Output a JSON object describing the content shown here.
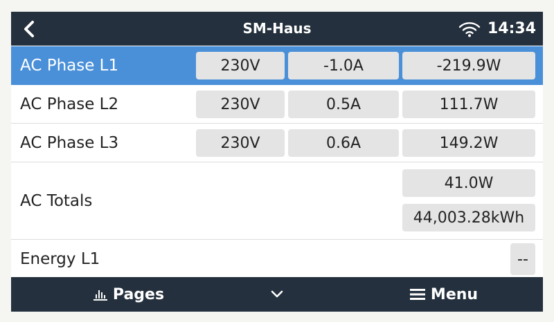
{
  "header": {
    "title": "SM-Haus",
    "time": "14:34",
    "back_icon": "chevron-left-icon",
    "wifi_icon": "wifi-icon"
  },
  "rows": [
    {
      "label": "AC Phase L1",
      "voltage": "230V",
      "current": "-1.0A",
      "power": "-219.9W",
      "selected": true
    },
    {
      "label": "AC Phase L2",
      "voltage": "230V",
      "current": "0.5A",
      "power": "111.7W",
      "selected": false
    },
    {
      "label": "AC Phase L3",
      "voltage": "230V",
      "current": "0.6A",
      "power": "149.2W",
      "selected": false
    }
  ],
  "totals": {
    "label": "AC Totals",
    "power": "41.0W",
    "energy": "44,003.28kWh"
  },
  "energy_l1": {
    "label": "Energy L1",
    "value": "--"
  },
  "footer": {
    "pages_label": "Pages",
    "pages_icon": "bar-chart-icon",
    "chevron_icon": "chevron-down-icon",
    "menu_label": "Menu",
    "menu_icon": "hamburger-icon"
  },
  "colors": {
    "bar": "#24303d",
    "selected": "#4a90d9",
    "cell": "#e4e4e4"
  }
}
